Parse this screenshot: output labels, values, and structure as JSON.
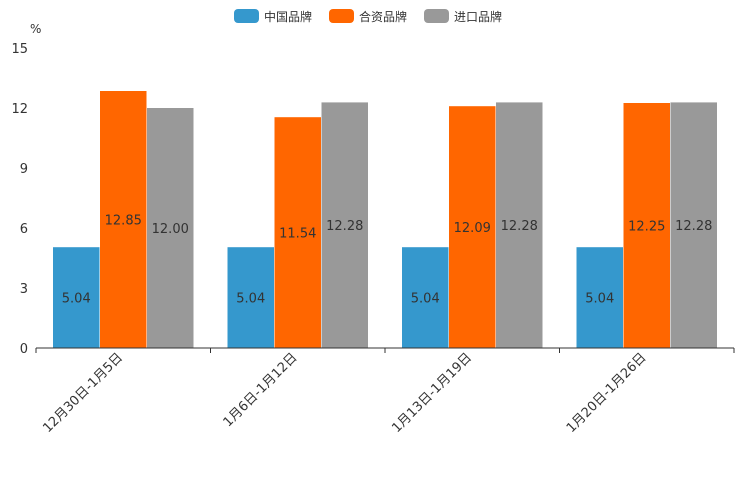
{
  "chart_data": {
    "type": "bar",
    "title": "",
    "ylabel": "%",
    "xlabel": "",
    "ylim": [
      0,
      15
    ],
    "yticks": [
      0,
      3,
      6,
      9,
      12,
      15
    ],
    "grid": false,
    "legend_position": "top-center",
    "categories": [
      "12月30日-1月5日",
      "1月6日-1月12日",
      "1月13日-1月19日",
      "1月20日-1月26日"
    ],
    "series": [
      {
        "name": "中国品牌",
        "color": "#3598cd",
        "values": [
          5.04,
          5.04,
          5.04,
          5.04
        ],
        "labels": [
          "5.04",
          "5.04",
          "5.04",
          "5.04"
        ]
      },
      {
        "name": "合资品牌",
        "color": "#ff6600",
        "values": [
          12.85,
          11.54,
          12.09,
          12.25
        ],
        "labels": [
          "12.85",
          "11.54",
          "12.09",
          "12.25"
        ]
      },
      {
        "name": "进口品牌",
        "color": "#999999",
        "values": [
          12.0,
          12.28,
          12.28,
          12.28
        ],
        "labels": [
          "12.00",
          "12.28",
          "12.28",
          "12.28"
        ]
      }
    ]
  }
}
